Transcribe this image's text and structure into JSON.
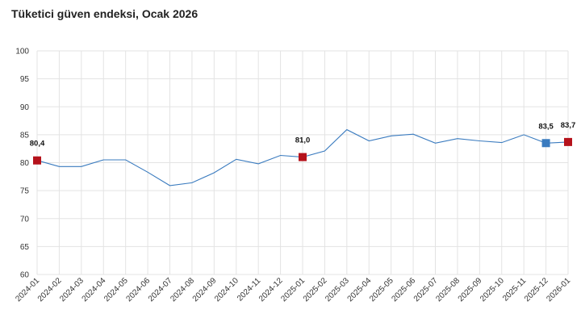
{
  "chart_data": {
    "type": "line",
    "title": "Tüketici güven endeksi, Ocak 2026",
    "xlabel": "",
    "ylabel": "",
    "ylim": [
      60,
      100
    ],
    "yticks": [
      "60",
      "65",
      "70",
      "75",
      "80",
      "85",
      "90",
      "95",
      "100"
    ],
    "grid": true,
    "legend": "none",
    "categories": [
      "2024-01",
      "2024-02",
      "2024-03",
      "2024-04",
      "2024-05",
      "2024-06",
      "2024-07",
      "2024-08",
      "2024-09",
      "2024-10",
      "2024-11",
      "2024-12",
      "2025-01",
      "2025-02",
      "2025-03",
      "2025-04",
      "2025-05",
      "2025-06",
      "2025-07",
      "2025-08",
      "2025-09",
      "2025-10",
      "2025-11",
      "2025-12",
      "2026-01"
    ],
    "series": [
      {
        "values": [
          80.4,
          79.3,
          79.3,
          80.5,
          80.5,
          78.3,
          75.9,
          76.4,
          78.2,
          80.6,
          79.8,
          81.3,
          81.0,
          82.1,
          85.9,
          83.9,
          84.8,
          85.1,
          83.5,
          84.3,
          83.9,
          83.6,
          85.0,
          83.5,
          83.7
        ],
        "color": "#3a7bbf"
      }
    ],
    "highlights": [
      {
        "index": 0,
        "label": "80,4",
        "color": "#b5121b"
      },
      {
        "index": 12,
        "label": "81,0",
        "color": "#b5121b"
      },
      {
        "index": 23,
        "label": "83,5",
        "color": "#3a7bbf"
      },
      {
        "index": 24,
        "label": "83,7",
        "color": "#b5121b"
      }
    ]
  }
}
